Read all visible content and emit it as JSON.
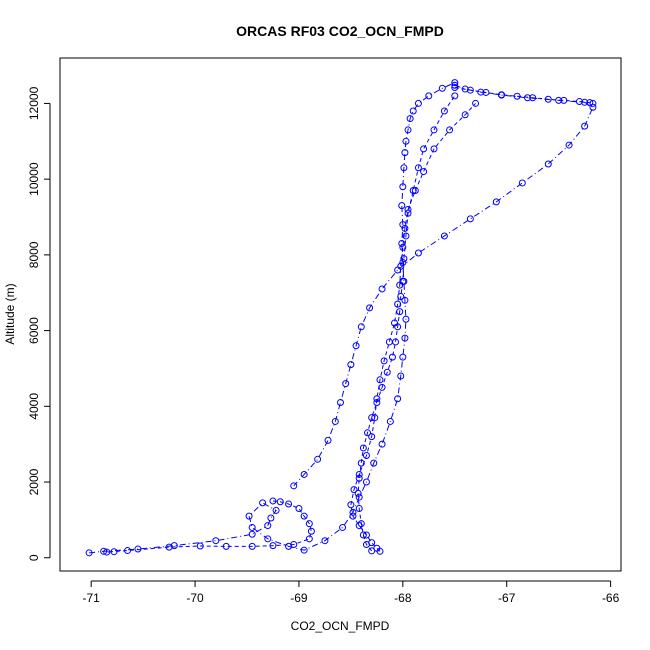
{
  "chart_data": {
    "type": "scatter",
    "title": "ORCAS RF03 CO2_OCN_FMPD",
    "xlabel": "CO2_OCN_FMPD",
    "ylabel": "Altitude (m)",
    "xlim": [
      -71.3,
      -65.9
    ],
    "ylim": [
      -350,
      13200
    ],
    "xticks": [
      -71,
      -70,
      -69,
      -68,
      -67,
      -66
    ],
    "yticks": [
      0,
      2000,
      4000,
      6000,
      8000,
      10000,
      12000
    ],
    "xtick_labels": [
      "-71",
      "-70",
      "-69",
      "-68",
      "-67",
      "-66"
    ],
    "ytick_labels": [
      "0",
      "2000",
      "4000",
      "6000",
      "8000",
      "10000",
      "12000"
    ],
    "grid": false,
    "series": [
      {
        "marker": "open-circle",
        "line_style": "dash-dot",
        "color": "#0000ff",
        "x": [
          -71.02,
          -70.88,
          -70.55,
          -70.2,
          -69.8,
          -69.45,
          -69.3,
          -69.27,
          -69.22,
          -69.35,
          -69.48,
          -69.45,
          -69.3,
          -69.1,
          -68.95,
          -68.75,
          -68.58,
          -68.48,
          -68.42,
          -68.35,
          -68.28,
          -68.2,
          -68.12,
          -68.05,
          -68.02,
          -68.0,
          -67.98,
          -67.97,
          -67.98,
          -67.99,
          -68.0,
          -68.01,
          -68.0,
          -68.01,
          -68.0,
          -67.99,
          -67.98,
          -67.97,
          -67.95,
          -67.93,
          -67.9,
          -67.85,
          -67.75,
          -67.62,
          -67.5
        ],
        "y": [
          130,
          170,
          230,
          320,
          450,
          620,
          850,
          1050,
          1250,
          1450,
          1100,
          800,
          500,
          300,
          200,
          450,
          800,
          1200,
          1600,
          2000,
          2500,
          3000,
          3600,
          4200,
          4800,
          5300,
          5800,
          6300,
          6800,
          7300,
          7800,
          8300,
          8800,
          9300,
          9800,
          10300,
          10700,
          11000,
          11300,
          11600,
          11800,
          12000,
          12200,
          12400,
          12550
        ]
      },
      {
        "marker": "open-circle",
        "line_style": "dash-dot",
        "color": "#0000ff",
        "x": [
          -67.5,
          -67.4,
          -67.25,
          -67.05,
          -66.8,
          -66.5,
          -66.25,
          -66.17,
          -66.25,
          -66.4,
          -66.6,
          -66.85,
          -67.1,
          -67.35,
          -67.6,
          -67.85,
          -68.05,
          -68.2,
          -68.32,
          -68.4,
          -68.45,
          -68.5,
          -68.55,
          -68.6,
          -68.65,
          -68.72,
          -68.82,
          -68.95,
          -69.05
        ],
        "y": [
          12480,
          12380,
          12300,
          12220,
          12150,
          12080,
          12030,
          11900,
          11400,
          10900,
          10400,
          9900,
          9400,
          8950,
          8500,
          8050,
          7600,
          7100,
          6600,
          6100,
          5600,
          5100,
          4600,
          4100,
          3600,
          3100,
          2600,
          2200,
          1900
        ]
      },
      {
        "marker": "open-circle",
        "line_style": "dashed",
        "color": "#0000ff",
        "x": [
          -69.25,
          -69.18,
          -69.1,
          -69.0,
          -68.95,
          -68.9,
          -68.88,
          -68.9,
          -69.05,
          -69.25,
          -69.45,
          -69.7,
          -69.95,
          -70.25,
          -70.65,
          -70.85,
          -70.78
        ],
        "y": [
          1500,
          1480,
          1420,
          1300,
          1100,
          900,
          700,
          500,
          350,
          320,
          300,
          300,
          310,
          280,
          190,
          150,
          160
        ]
      },
      {
        "marker": "open-circle",
        "line_style": "dashed",
        "color": "#0000ff",
        "x": [
          -68.3,
          -68.35,
          -68.38,
          -68.4,
          -68.42,
          -68.43,
          -68.42,
          -68.4,
          -68.38,
          -68.34,
          -68.3,
          -68.25,
          -68.2,
          -68.15,
          -68.1,
          -68.07,
          -68.05,
          -68.03,
          -68.02,
          -68.0,
          -67.99,
          -67.97,
          -67.95,
          -67.9,
          -67.85,
          -67.8,
          -67.7,
          -67.6,
          -67.5
        ],
        "y": [
          180,
          350,
          600,
          900,
          1300,
          1700,
          2100,
          2500,
          2900,
          3300,
          3700,
          4100,
          4500,
          4900,
          5300,
          5700,
          6100,
          6500,
          6900,
          7300,
          7900,
          8500,
          9100,
          9700,
          10300,
          10800,
          11300,
          11800,
          12200
        ]
      },
      {
        "marker": "open-circle",
        "line_style": "dashed",
        "color": "#0000ff",
        "x": [
          -68.22,
          -68.25,
          -68.3,
          -68.35,
          -68.42,
          -68.48,
          -68.5,
          -68.47,
          -68.42,
          -68.35,
          -68.3,
          -68.27,
          -68.25,
          -68.22,
          -68.18,
          -68.13,
          -68.08,
          -68.05,
          -68.03,
          -68.02,
          -68.0,
          -67.98,
          -67.95,
          -67.88,
          -67.8,
          -67.7,
          -67.55,
          -67.4,
          -67.3
        ],
        "y": [
          170,
          250,
          400,
          600,
          850,
          1100,
          1400,
          1800,
          2200,
          2700,
          3200,
          3700,
          4200,
          4700,
          5200,
          5700,
          6200,
          6700,
          7200,
          7700,
          8200,
          8700,
          9200,
          9700,
          10200,
          10800,
          11300,
          11700,
          12000
        ]
      },
      {
        "marker": "open-circle",
        "line_style": "dashed",
        "color": "#0000ff",
        "x": [
          -67.5,
          -67.35,
          -67.2,
          -67.05,
          -66.9,
          -66.75,
          -66.6,
          -66.45,
          -66.3,
          -66.2,
          -66.17
        ],
        "y": [
          12420,
          12350,
          12290,
          12230,
          12190,
          12150,
          12110,
          12080,
          12050,
          12020,
          12000
        ]
      }
    ]
  }
}
